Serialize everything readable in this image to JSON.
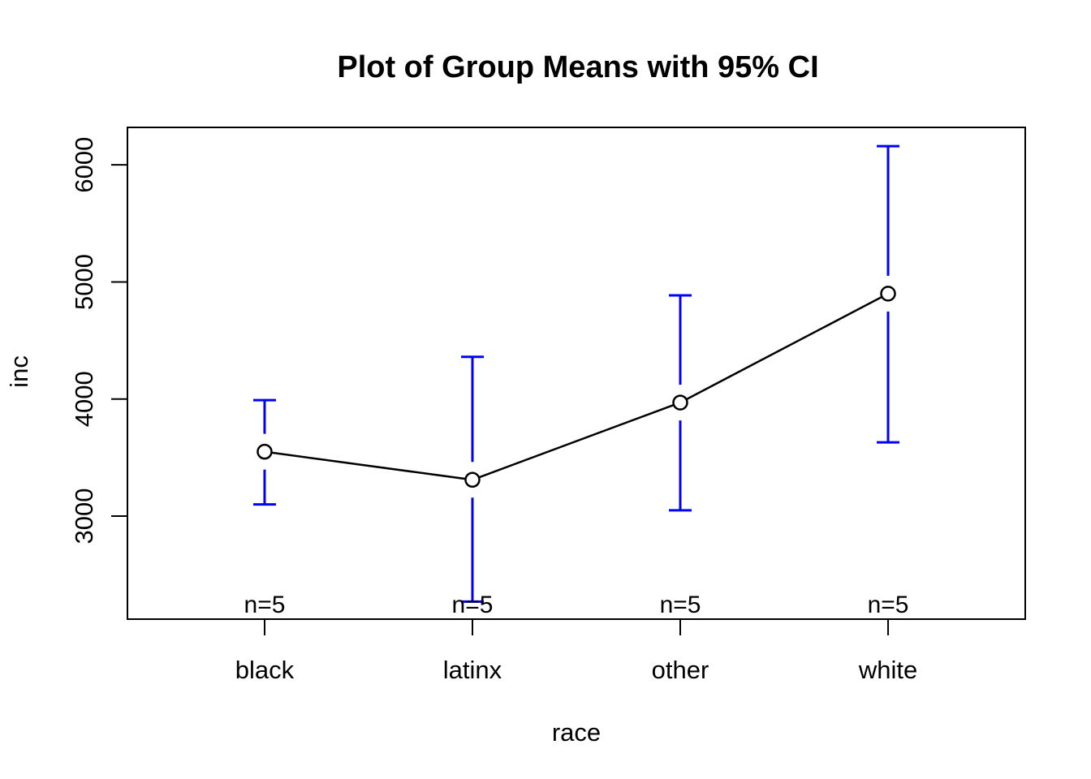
{
  "chart_data": {
    "type": "line",
    "title": "Plot of Group Means with 95% CI",
    "xlabel": "race",
    "ylabel": "inc",
    "categories": [
      "black",
      "latinx",
      "other",
      "white"
    ],
    "series": [
      {
        "name": "group mean of inc",
        "values": [
          3550,
          3310,
          3970,
          4900
        ]
      }
    ],
    "error_bars": {
      "label": "95% CI",
      "lower": [
        3100,
        2270,
        3050,
        3630
      ],
      "upper": [
        3990,
        4360,
        4885,
        6160
      ]
    },
    "point_labels": [
      "n=5",
      "n=5",
      "n=5",
      "n=5"
    ],
    "yticks": [
      3000,
      4000,
      5000,
      6000
    ],
    "ylim": [
      2120,
      6320
    ],
    "xlim": [
      0.34,
      4.66
    ],
    "grid": false,
    "legend": false,
    "point_style": "open-circle",
    "colors": {
      "error_bar": "#0000FF",
      "line": "#000000",
      "point_stroke": "#000000",
      "point_fill": "#FFFFFF",
      "axis": "#000000",
      "background": "#FFFFFF"
    }
  }
}
